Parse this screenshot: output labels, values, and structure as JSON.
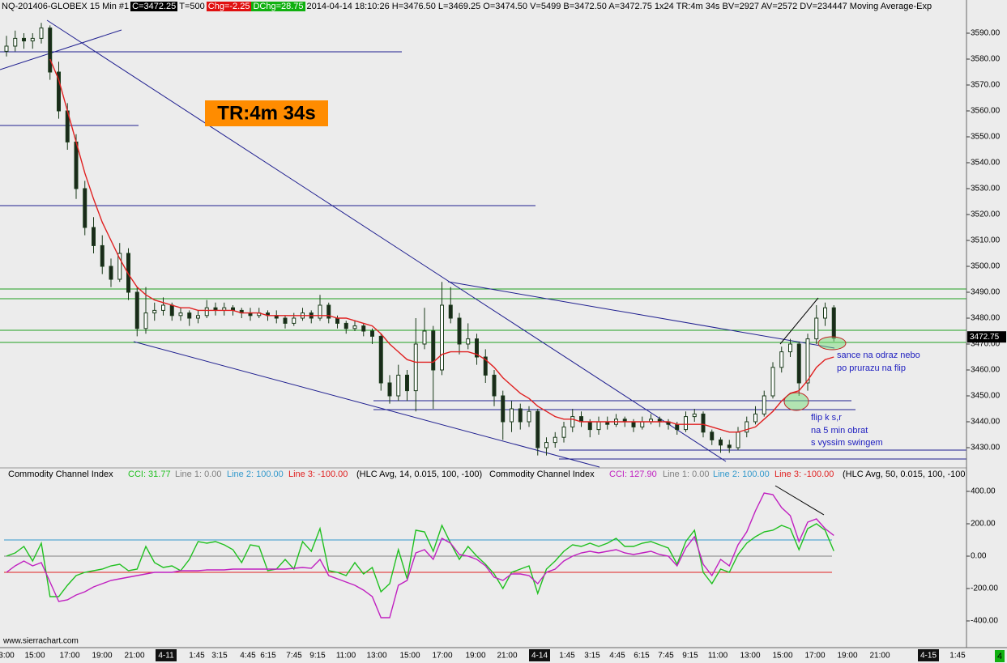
{
  "header": {
    "symbol": "NQ-201406-GLOBEX 15 Min  #1",
    "close": "C=3472.25",
    "trades": "T=500",
    "change": "Chg=-2.25",
    "daily_change": "DChg=28.75",
    "details": "2014-04-14 18:10:26 H=3476.50 L=3469.25 O=3474.50 V=5499 B=3472.50 A=3472.75 1x24 TR:4m 34s BV=2927 AV=2572 DV=234447 Moving Average-Exp"
  },
  "annotations": {
    "tr_box": "TR:4m 34s",
    "note_top": [
      "sance na odraz nebo",
      "po prurazu na flip"
    ],
    "note_bottom": [
      "flip k s,r",
      "na 5 min obrat",
      "s vyssim swingem"
    ],
    "watermark": "www.sierrachart.com",
    "page_number": "4"
  },
  "chart_data": [
    {
      "type": "candlestick",
      "up_color": "#ffffff",
      "down_color": "#1a2a1a",
      "wick_color": "#1a3a1a",
      "candles": [
        [
          3583,
          3589,
          3581,
          3585
        ],
        [
          3585,
          3591,
          3583,
          3588
        ],
        [
          3588,
          3590,
          3584,
          3587
        ],
        [
          3587,
          3590,
          3584,
          3588
        ],
        [
          3588,
          3594,
          3586,
          3592
        ],
        [
          3592,
          3593,
          3572,
          3575
        ],
        [
          3575,
          3579,
          3557,
          3560
        ],
        [
          3560,
          3563,
          3545,
          3548
        ],
        [
          3548,
          3551,
          3526,
          3530
        ],
        [
          3530,
          3533,
          3512,
          3515
        ],
        [
          3515,
          3519,
          3505,
          3508
        ],
        [
          3508,
          3512,
          3497,
          3500
        ],
        [
          3500,
          3503,
          3492,
          3495
        ],
        [
          3495,
          3509,
          3494,
          3505
        ],
        [
          3505,
          3507,
          3487,
          3490
        ],
        [
          3490,
          3492,
          3473,
          3476
        ],
        [
          3476,
          3492,
          3474,
          3482
        ],
        [
          3482,
          3486,
          3479,
          3483
        ],
        [
          3483,
          3488,
          3481,
          3485
        ],
        [
          3485,
          3486,
          3479,
          3481
        ],
        [
          3481,
          3484,
          3479,
          3482
        ],
        [
          3482,
          3483,
          3477,
          3480
        ],
        [
          3480,
          3483,
          3478,
          3481
        ],
        [
          3481,
          3487,
          3480,
          3484
        ],
        [
          3484,
          3486,
          3481,
          3483
        ],
        [
          3483,
          3486,
          3481,
          3484
        ],
        [
          3484,
          3485,
          3481,
          3483
        ],
        [
          3483,
          3484,
          3480,
          3482
        ],
        [
          3482,
          3484,
          3479,
          3481
        ],
        [
          3481,
          3484,
          3480,
          3482
        ],
        [
          3482,
          3483,
          3479,
          3481
        ],
        [
          3481,
          3483,
          3478,
          3480
        ],
        [
          3480,
          3481,
          3476,
          3478
        ],
        [
          3478,
          3482,
          3477,
          3480
        ],
        [
          3480,
          3484,
          3479,
          3482
        ],
        [
          3482,
          3483,
          3478,
          3480
        ],
        [
          3480,
          3489,
          3479,
          3485
        ],
        [
          3485,
          3486,
          3478,
          3480
        ],
        [
          3480,
          3481,
          3476,
          3478
        ],
        [
          3478,
          3479,
          3474,
          3476
        ],
        [
          3476,
          3479,
          3475,
          3477
        ],
        [
          3477,
          3478,
          3473,
          3475
        ],
        [
          3475,
          3476,
          3470,
          3473
        ],
        [
          3473,
          3474,
          3452,
          3455
        ],
        [
          3455,
          3458,
          3447,
          3450
        ],
        [
          3450,
          3462,
          3448,
          3458
        ],
        [
          3458,
          3460,
          3448,
          3452
        ],
        [
          3452,
          3480,
          3444,
          3470
        ],
        [
          3470,
          3484,
          3468,
          3475
        ],
        [
          3475,
          3477,
          3445,
          3460
        ],
        [
          3460,
          3494,
          3458,
          3485
        ],
        [
          3485,
          3492,
          3478,
          3480
        ],
        [
          3480,
          3482,
          3466,
          3470
        ],
        [
          3470,
          3478,
          3468,
          3472
        ],
        [
          3472,
          3474,
          3462,
          3465
        ],
        [
          3465,
          3468,
          3455,
          3458
        ],
        [
          3458,
          3460,
          3446,
          3450
        ],
        [
          3450,
          3452,
          3433,
          3440
        ],
        [
          3440,
          3448,
          3436,
          3445
        ],
        [
          3445,
          3447,
          3437,
          3440
        ],
        [
          3440,
          3446,
          3438,
          3444
        ],
        [
          3444,
          3445,
          3427,
          3430
        ],
        [
          3430,
          3434,
          3427,
          3432
        ],
        [
          3432,
          3436,
          3430,
          3434
        ],
        [
          3434,
          3440,
          3432,
          3438
        ],
        [
          3438,
          3445,
          3436,
          3442
        ],
        [
          3442,
          3444,
          3438,
          3440
        ],
        [
          3440,
          3441,
          3434,
          3437
        ],
        [
          3437,
          3442,
          3435,
          3440
        ],
        [
          3440,
          3442,
          3437,
          3439
        ],
        [
          3439,
          3443,
          3438,
          3441
        ],
        [
          3441,
          3442,
          3438,
          3440
        ],
        [
          3440,
          3441,
          3436,
          3438
        ],
        [
          3438,
          3442,
          3437,
          3440
        ],
        [
          3440,
          3443,
          3439,
          3441
        ],
        [
          3441,
          3442,
          3438,
          3440
        ],
        [
          3440,
          3441,
          3437,
          3439
        ],
        [
          3439,
          3440,
          3435,
          3437
        ],
        [
          3437,
          3444,
          3436,
          3442
        ],
        [
          3442,
          3445,
          3440,
          3443
        ],
        [
          3443,
          3444,
          3434,
          3436
        ],
        [
          3436,
          3437,
          3431,
          3433
        ],
        [
          3433,
          3434,
          3428,
          3431
        ],
        [
          3431,
          3433,
          3428,
          3430
        ],
        [
          3430,
          3438,
          3429,
          3436
        ],
        [
          3436,
          3442,
          3434,
          3440
        ],
        [
          3440,
          3446,
          3439,
          3443
        ],
        [
          3443,
          3452,
          3442,
          3450
        ],
        [
          3450,
          3463,
          3449,
          3461
        ],
        [
          3461,
          3469,
          3459,
          3467
        ],
        [
          3467,
          3472,
          3465,
          3470
        ],
        [
          3470,
          3471,
          3450,
          3455
        ],
        [
          3455,
          3474,
          3452,
          3472
        ],
        [
          3472,
          3485,
          3470,
          3480
        ],
        [
          3480,
          3486,
          3477,
          3484
        ],
        [
          3484,
          3485,
          3471,
          3472.25
        ]
      ],
      "moving_average": {
        "color": "#e02020",
        "values": [
          null,
          null,
          null,
          null,
          null,
          3580,
          3572,
          3560,
          3548,
          3536,
          3526,
          3517,
          3510,
          3503,
          3497,
          3492,
          3489,
          3487,
          3486,
          3485,
          3484,
          3484,
          3483,
          3483,
          3483,
          3483,
          3483,
          3482,
          3482,
          3482,
          3481,
          3481,
          3481,
          3481,
          3481,
          3481,
          3481,
          3481,
          3480,
          3480,
          3479,
          3478,
          3477,
          3474,
          3470,
          3467,
          3464,
          3463,
          3463,
          3463,
          3466,
          3467,
          3467,
          3467,
          3466,
          3464,
          3461,
          3457,
          3454,
          3451,
          3449,
          3446,
          3444,
          3442,
          3441,
          3441,
          3440,
          3440,
          3440,
          3440,
          3440,
          3440,
          3440,
          3440,
          3440,
          3440,
          3440,
          3439,
          3439,
          3439,
          3439,
          3438,
          3437,
          3436,
          3436,
          3437,
          3438,
          3441,
          3444,
          3448,
          3451,
          3452,
          3456,
          3461,
          3464,
          3465
        ]
      },
      "ylim": [
        3422.19,
        3602.81
      ],
      "yticks": [
        {
          "value": 3430,
          "label": "3430.00"
        },
        {
          "value": 3440,
          "label": "3440.00"
        },
        {
          "value": 3450,
          "label": "3450.00"
        },
        {
          "value": 3460,
          "label": "3460.00"
        },
        {
          "value": 3470,
          "label": "3470.00"
        },
        {
          "value": 3480,
          "label": "3480.00"
        },
        {
          "value": 3490,
          "label": "3490.00"
        },
        {
          "value": 3500,
          "label": "3500.00"
        },
        {
          "value": 3510,
          "label": "3510.00"
        },
        {
          "value": 3520,
          "label": "3520.00"
        },
        {
          "value": 3530,
          "label": "3530.00"
        },
        {
          "value": 3540,
          "label": "3540.00"
        },
        {
          "value": 3550,
          "label": "3550.00"
        },
        {
          "value": 3560,
          "label": "3560.00"
        },
        {
          "value": 3570,
          "label": "3570.00"
        },
        {
          "value": 3580,
          "label": "3580.00"
        },
        {
          "value": 3590,
          "label": "3590.00"
        }
      ],
      "last_price": {
        "value": 3472.75,
        "label": "3472.75"
      },
      "x_labels": [
        "3:00",
        "15:00",
        "17:00",
        "19:00",
        "21:00",
        "4-11",
        "1:45",
        "3:15",
        "4:45",
        "6:15",
        "7:45",
        "9:15",
        "11:00",
        "13:00",
        "15:00",
        "17:00",
        "19:00",
        "21:00",
        "4-14",
        "1:45",
        "3:15",
        "4:45",
        "6:15",
        "7:45",
        "9:15",
        "11:00",
        "13:00",
        "15:00",
        "17:00",
        "19:00",
        "21:00",
        "4-15",
        "1:45"
      ]
    },
    {
      "type": "line",
      "ylim": [
        -565,
        545
      ],
      "yticks": [
        {
          "value": 400,
          "label": "400.00"
        },
        {
          "value": 200,
          "label": "200.00"
        },
        {
          "value": 0,
          "label": "0.00"
        },
        {
          "value": -200,
          "label": "-200.00"
        },
        {
          "value": -400,
          "label": "-400.00"
        }
      ],
      "studies": [
        {
          "label": "Commodity Channel Index",
          "name": "CCI: 31.77",
          "color": "#20c020",
          "params": "(HLC Avg, 14, 0.015, 100, -100)",
          "values": [
            0,
            20,
            60,
            -30,
            80,
            -250,
            -250,
            -180,
            -120,
            -100,
            -90,
            -80,
            -60,
            -50,
            -90,
            -80,
            60,
            -40,
            -70,
            -60,
            -90,
            -20,
            90,
            80,
            90,
            70,
            40,
            -40,
            70,
            60,
            -90,
            -80,
            -20,
            -80,
            90,
            30,
            170,
            -90,
            -100,
            -120,
            -40,
            -110,
            -70,
            -220,
            -170,
            40,
            -140,
            160,
            150,
            30,
            190,
            80,
            -20,
            60,
            0,
            -50,
            -110,
            -200,
            -100,
            -80,
            -60,
            -230,
            -80,
            -30,
            30,
            70,
            60,
            80,
            60,
            80,
            110,
            60,
            60,
            80,
            90,
            70,
            50,
            -50,
            90,
            160,
            -100,
            -170,
            -80,
            -100,
            10,
            80,
            120,
            150,
            160,
            190,
            170,
            40,
            170,
            200,
            160,
            31.77
          ],
          "lines": [
            {
              "label": "Line 1: 0.00",
              "value": 0,
              "color": "#808080"
            },
            {
              "label": "Line 2: 100.00",
              "value": 100,
              "color": "#3399cc"
            },
            {
              "label": "Line 3: -100.00",
              "value": -100,
              "color": "#e02020"
            }
          ]
        },
        {
          "label": "Commodity Channel Index",
          "name": "CCI: 127.90",
          "color": "#c020c0",
          "params": "(HLC Avg, 50, 0.015, 100, -100",
          "values": [
            -100,
            -60,
            -30,
            -60,
            -40,
            -160,
            -280,
            -270,
            -240,
            -220,
            -190,
            -170,
            -150,
            -140,
            -130,
            -120,
            -110,
            -100,
            -100,
            -100,
            -90,
            -90,
            -90,
            -85,
            -85,
            -85,
            -80,
            -80,
            -80,
            -80,
            -80,
            -80,
            -80,
            -75,
            -70,
            -75,
            -20,
            -120,
            -140,
            -160,
            -180,
            -210,
            -250,
            -380,
            -380,
            -180,
            -150,
            20,
            40,
            -20,
            110,
            80,
            10,
            0,
            -20,
            -60,
            -130,
            -150,
            -110,
            -110,
            -120,
            -170,
            -100,
            -80,
            -30,
            0,
            20,
            30,
            20,
            30,
            40,
            20,
            10,
            20,
            30,
            10,
            0,
            -60,
            50,
            120,
            -50,
            -120,
            -20,
            -60,
            70,
            150,
            280,
            390,
            380,
            300,
            250,
            90,
            210,
            230,
            170,
            127.9
          ],
          "lines": [
            {
              "label": "Line 1: 0.00",
              "value": 0,
              "color": "#808080"
            },
            {
              "label": "Line 2: 100.00",
              "value": 100,
              "color": "#3399cc"
            },
            {
              "label": "Line 3: -100.00",
              "value": -100,
              "color": "#e02020"
            }
          ]
        }
      ]
    }
  ]
}
